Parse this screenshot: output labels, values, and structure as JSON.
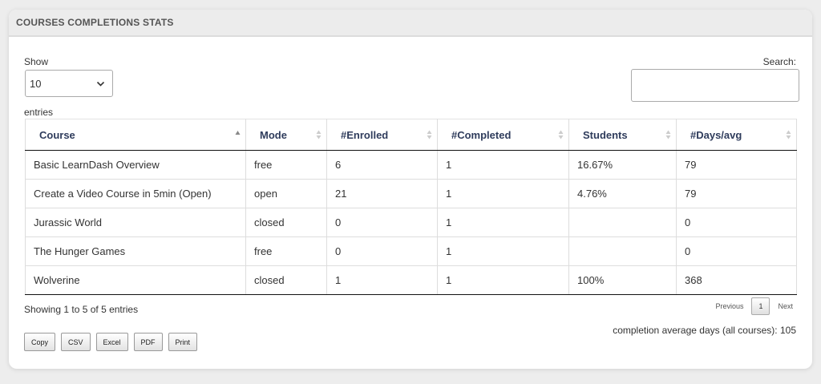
{
  "panel": {
    "title": "COURSES COMPLETIONS STATS"
  },
  "length": {
    "label": "Show",
    "value": "10",
    "suffix": "entries"
  },
  "search": {
    "label": "Search:",
    "value": ""
  },
  "table": {
    "headers": [
      "Course",
      "Mode",
      "#Enrolled",
      "#Completed",
      "Students",
      "#Days/avg"
    ],
    "rows": [
      [
        "Basic LearnDash Overview",
        "free",
        "6",
        "1",
        "16.67%",
        "79"
      ],
      [
        "Create a Video Course in 5min (Open)",
        "open",
        "21",
        "1",
        "4.76%",
        "79"
      ],
      [
        "Jurassic World",
        "closed",
        "0",
        "1",
        "",
        "0"
      ],
      [
        "The Hunger Games",
        "free",
        "0",
        "1",
        "",
        "0"
      ],
      [
        "Wolverine",
        "closed",
        "1",
        "1",
        "100%",
        "368"
      ]
    ]
  },
  "info": "Showing 1 to 5 of 5 entries",
  "pagination": {
    "previous": "Previous",
    "current": "1",
    "next": "Next"
  },
  "average": "completion average days (all courses): 105",
  "export_buttons": [
    "Copy",
    "CSV",
    "Excel",
    "PDF",
    "Print"
  ]
}
